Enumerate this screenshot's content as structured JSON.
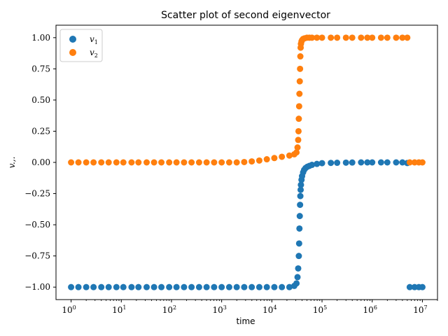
{
  "chart_data": {
    "type": "scatter",
    "title": "Scatter plot of second eigenvector",
    "xlabel": "time",
    "ylabel": "v.,.",
    "x_scale": "log",
    "xlim": [
      0.5,
      20000000
    ],
    "ylim": [
      -1.1,
      1.1
    ],
    "grid": false,
    "legend_position": "upper-left",
    "x_ticks": [
      {
        "value": 1,
        "base": "10",
        "exp": "0"
      },
      {
        "value": 10,
        "base": "10",
        "exp": "1"
      },
      {
        "value": 100,
        "base": "10",
        "exp": "2"
      },
      {
        "value": 1000,
        "base": "10",
        "exp": "3"
      },
      {
        "value": 10000,
        "base": "10",
        "exp": "4"
      },
      {
        "value": 100000,
        "base": "10",
        "exp": "5"
      },
      {
        "value": 1000000,
        "base": "10",
        "exp": "6"
      },
      {
        "value": 10000000,
        "base": "10",
        "exp": "7"
      }
    ],
    "y_ticks": [
      {
        "value": 1.0,
        "label": "1.00"
      },
      {
        "value": 0.75,
        "label": "0.75"
      },
      {
        "value": 0.5,
        "label": "0.50"
      },
      {
        "value": 0.25,
        "label": "0.25"
      },
      {
        "value": 0.0,
        "label": "0.00"
      },
      {
        "value": -0.25,
        "label": "−0.25"
      },
      {
        "value": -0.5,
        "label": "−0.50"
      },
      {
        "value": -0.75,
        "label": "−0.75"
      },
      {
        "value": -1.0,
        "label": "−1.00"
      }
    ],
    "series": [
      {
        "name": "v1",
        "label_base": "v",
        "label_sub": "1",
        "color": "#1f77b4",
        "points": [
          [
            1,
            -1.0
          ],
          [
            1.4,
            -1.0
          ],
          [
            2,
            -1.0
          ],
          [
            2.8,
            -1.0
          ],
          [
            4,
            -1.0
          ],
          [
            5.6,
            -1.0
          ],
          [
            8,
            -1.0
          ],
          [
            11,
            -1.0
          ],
          [
            16,
            -1.0
          ],
          [
            22,
            -1.0
          ],
          [
            32,
            -1.0
          ],
          [
            45,
            -1.0
          ],
          [
            63,
            -1.0
          ],
          [
            90,
            -1.0
          ],
          [
            126,
            -1.0
          ],
          [
            178,
            -1.0
          ],
          [
            251,
            -1.0
          ],
          [
            355,
            -1.0
          ],
          [
            501,
            -1.0
          ],
          [
            708,
            -1.0
          ],
          [
            1000,
            -1.0
          ],
          [
            1413,
            -1.0
          ],
          [
            1995,
            -1.0
          ],
          [
            2818,
            -1.0
          ],
          [
            3981,
            -1.0
          ],
          [
            5623,
            -1.0
          ],
          [
            7943,
            -1.0
          ],
          [
            11220,
            -1.0
          ],
          [
            15850,
            -1.0
          ],
          [
            22390,
            -1.0
          ],
          [
            28000,
            -0.99
          ],
          [
            31000,
            -0.97
          ],
          [
            32500,
            -0.92
          ],
          [
            33500,
            -0.85
          ],
          [
            34500,
            -0.75
          ],
          [
            35000,
            -0.65
          ],
          [
            35500,
            -0.53
          ],
          [
            36000,
            -0.43
          ],
          [
            36500,
            -0.34
          ],
          [
            37000,
            -0.27
          ],
          [
            37500,
            -0.22
          ],
          [
            38000,
            -0.18
          ],
          [
            39000,
            -0.14
          ],
          [
            40000,
            -0.11
          ],
          [
            42000,
            -0.08
          ],
          [
            44000,
            -0.06
          ],
          [
            47000,
            -0.045
          ],
          [
            51000,
            -0.035
          ],
          [
            56000,
            -0.028
          ],
          [
            63000,
            -0.02
          ],
          [
            79000,
            -0.012
          ],
          [
            100000,
            -0.006
          ],
          [
            150000,
            -0.004
          ],
          [
            200000,
            -0.003
          ],
          [
            300000,
            -0.002
          ],
          [
            400000,
            -0.001
          ],
          [
            600000,
            0.0
          ],
          [
            800000,
            0.0
          ],
          [
            1000000,
            0.0
          ],
          [
            1500000,
            0.0
          ],
          [
            2000000,
            0.0
          ],
          [
            3000000,
            0.0
          ],
          [
            4000000,
            0.0
          ],
          [
            5000000,
            -0.005
          ],
          [
            5600000,
            -1.0
          ],
          [
            7000000,
            -1.0
          ],
          [
            8500000,
            -1.0
          ],
          [
            10000000,
            -1.0
          ]
        ]
      },
      {
        "name": "v2",
        "label_base": "v",
        "label_sub": "2",
        "color": "#ff7f0e",
        "points": [
          [
            1,
            0.0
          ],
          [
            1.4,
            0.0
          ],
          [
            2,
            0.0
          ],
          [
            2.8,
            0.0
          ],
          [
            4,
            0.0
          ],
          [
            5.6,
            0.0
          ],
          [
            8,
            0.0
          ],
          [
            11,
            0.0
          ],
          [
            16,
            0.0
          ],
          [
            22,
            0.0
          ],
          [
            32,
            0.0
          ],
          [
            45,
            0.0
          ],
          [
            63,
            0.0
          ],
          [
            90,
            0.0
          ],
          [
            126,
            0.0
          ],
          [
            178,
            0.0
          ],
          [
            251,
            0.0
          ],
          [
            355,
            0.0
          ],
          [
            501,
            0.0
          ],
          [
            708,
            0.0
          ],
          [
            1000,
            0.0
          ],
          [
            1413,
            0.0
          ],
          [
            1995,
            0.0
          ],
          [
            2818,
            0.003
          ],
          [
            3981,
            0.008
          ],
          [
            5623,
            0.015
          ],
          [
            7943,
            0.025
          ],
          [
            11220,
            0.035
          ],
          [
            15850,
            0.045
          ],
          [
            22390,
            0.055
          ],
          [
            28000,
            0.065
          ],
          [
            31000,
            0.08
          ],
          [
            32500,
            0.12
          ],
          [
            33500,
            0.18
          ],
          [
            34000,
            0.25
          ],
          [
            34500,
            0.35
          ],
          [
            35000,
            0.45
          ],
          [
            35500,
            0.55
          ],
          [
            36000,
            0.65
          ],
          [
            36500,
            0.75
          ],
          [
            37000,
            0.85
          ],
          [
            37500,
            0.92
          ],
          [
            38000,
            0.95
          ],
          [
            39000,
            0.97
          ],
          [
            40000,
            0.98
          ],
          [
            42000,
            0.99
          ],
          [
            45000,
            0.995
          ],
          [
            50000,
            1.0
          ],
          [
            56000,
            1.0
          ],
          [
            63000,
            1.0
          ],
          [
            79000,
            1.0
          ],
          [
            100000,
            1.0
          ],
          [
            150000,
            1.0
          ],
          [
            200000,
            1.0
          ],
          [
            300000,
            1.0
          ],
          [
            400000,
            1.0
          ],
          [
            600000,
            1.0
          ],
          [
            800000,
            1.0
          ],
          [
            1000000,
            1.0
          ],
          [
            1500000,
            1.0
          ],
          [
            2000000,
            1.0
          ],
          [
            3000000,
            1.0
          ],
          [
            4000000,
            1.0
          ],
          [
            5000000,
            1.0
          ],
          [
            5600000,
            0.0
          ],
          [
            7000000,
            0.0
          ],
          [
            8500000,
            0.0
          ],
          [
            10000000,
            0.0
          ]
        ]
      }
    ]
  }
}
